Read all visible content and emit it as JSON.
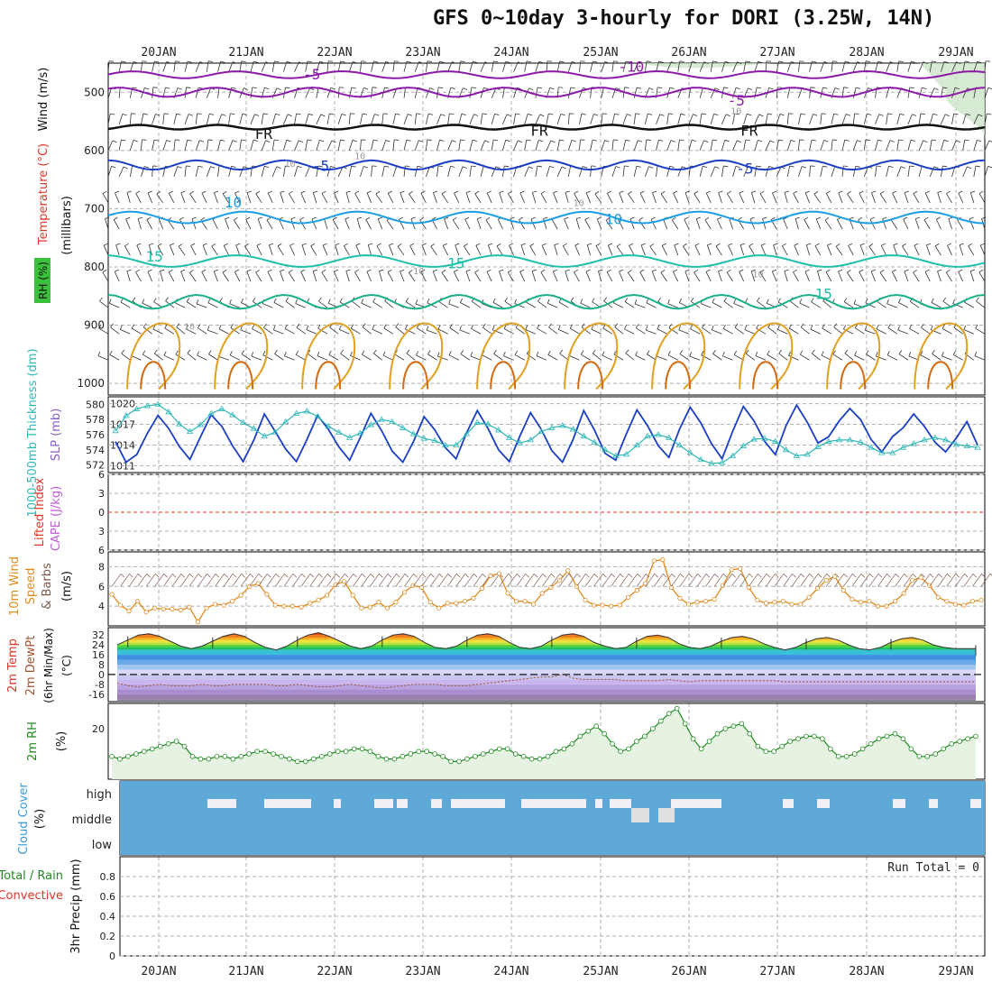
{
  "title": "GFS 0~10day 3-hourly for DORI (3.25W, 14N)",
  "colors": {
    "bg": "#ffffff",
    "grid": "#b0b0b0",
    "cloud": "#5ea9d8",
    "cloud_clear": "#f2eef6",
    "rh_fill": "#e6f2e2",
    "rh_line": "#1f8a1f",
    "temp_line": "#555555",
    "slp": "#1a3fc4",
    "thick": "#2fb7b7",
    "wind": "#e08a1e"
  },
  "chart_data": [
    {
      "panel": "upper-air",
      "type": "contour",
      "ylabel_parts": [
        "RH (%)",
        "Temperature (°C)",
        "Wind (m/s)"
      ],
      "yunit": "(millibars)",
      "x_ticks": [
        "20JAN",
        "21JAN",
        "22JAN",
        "23JAN",
        "24JAN",
        "25JAN",
        "26JAN",
        "27JAN",
        "28JAN",
        "29JAN"
      ],
      "y_ticks": [
        500,
        600,
        700,
        800,
        900,
        1000
      ],
      "ylim": [
        450,
        1020
      ],
      "contour_labels": [
        {
          "text": "-5",
          "pressure": 470,
          "day": 1.75,
          "color": "#8c1aa8"
        },
        {
          "text": "-10",
          "pressure": 457,
          "day": 5.4,
          "color": "#8c1aa8"
        },
        {
          "text": "-5",
          "pressure": 515,
          "day": 6.6,
          "color": "#8c1aa8"
        },
        {
          "text": "FR",
          "pressure": 572,
          "day": 1.2,
          "color": "#111111"
        },
        {
          "text": "FR",
          "pressure": 567,
          "day": 4.35,
          "color": "#111111"
        },
        {
          "text": "FR",
          "pressure": 567,
          "day": 6.75,
          "color": "#111111"
        },
        {
          "text": "-5",
          "pressure": 627,
          "day": 1.85,
          "color": "#1a3fc4"
        },
        {
          "text": "-5",
          "pressure": 632,
          "day": 6.7,
          "color": "#1a3fc4"
        },
        {
          "text": "10",
          "pressure": 690,
          "day": 0.85,
          "color": "#1c9ee6"
        },
        {
          "text": "10",
          "pressure": 719,
          "day": 5.2,
          "color": "#1c9ee6"
        },
        {
          "text": "15",
          "pressure": 783,
          "day": -0.05,
          "color": "#1fbfaa"
        },
        {
          "text": "15",
          "pressure": 795,
          "day": 3.4,
          "color": "#1fbfaa"
        },
        {
          "text": "15",
          "pressure": 847,
          "day": 7.6,
          "color": "#1fbfaa"
        },
        {
          "text": "10",
          "pressure": 530,
          "day": 6.6,
          "color": "#999999"
        },
        {
          "text": "10",
          "pressure": 607,
          "day": 2.3,
          "color": "#999999"
        },
        {
          "text": "10",
          "pressure": 620,
          "day": 1.5,
          "color": "#999999"
        },
        {
          "text": "10",
          "pressure": 688,
          "day": 4.8,
          "color": "#999999"
        },
        {
          "text": "10",
          "pressure": 810,
          "day": 6.85,
          "color": "#999999"
        },
        {
          "text": "10",
          "pressure": 805,
          "day": 2.97,
          "color": "#999999"
        },
        {
          "text": "10",
          "pressure": 900,
          "day": 0.35,
          "color": "#999999"
        }
      ]
    },
    {
      "panel": "slp-thickness",
      "type": "line",
      "ylabel_left": "1000-500mb Thickness (dm)",
      "ylabel_right": "SLP (mb)",
      "yticks_left": [
        572,
        574,
        576,
        578,
        580
      ],
      "yticks_right": [
        1011,
        1014,
        1017,
        1020
      ],
      "series": [
        {
          "name": "SLP",
          "values": [
            1014.5,
            1011.5,
            1012.6,
            1015.7,
            1018.3,
            1016.4,
            1013.8,
            1011.9,
            1015.2,
            1018.4,
            1016.7,
            1013.9,
            1011.6,
            1014.7,
            1018.5,
            1016.0,
            1013.4,
            1011.6,
            1014.8,
            1018.3,
            1016.3,
            1013.7,
            1011.8,
            1015.1,
            1018.6,
            1016.1,
            1013.1,
            1011.5,
            1014.5,
            1018.1,
            1016.2,
            1013.6,
            1012.0,
            1015.8,
            1019.0,
            1016.4,
            1013.3,
            1011.6,
            1015.3,
            1018.7,
            1016.3,
            1013.2,
            1011.5,
            1014.8,
            1019.0,
            1016.2,
            1012.8,
            1011.8,
            1015.6,
            1019.1,
            1016.8,
            1013.9,
            1012.2,
            1016.3,
            1019.5,
            1017.2,
            1014.2,
            1012.0,
            1016.0,
            1019.6,
            1017.5,
            1014.5,
            1012.6,
            1016.8,
            1019.8,
            1017.3,
            1014.3,
            1015.2,
            1017.5,
            1019.3,
            1017.7,
            1014.8,
            1013.0,
            1015.2,
            1016.5,
            1018.5,
            1016.7,
            1014.4,
            1013.0,
            1015.0,
            1017.4,
            1014.0
          ]
        },
        {
          "name": "Thickness",
          "values": [
            576.5,
            578.5,
            579.4,
            579.8,
            580.0,
            579.0,
            577.4,
            576.4,
            577.3,
            578.8,
            579.4,
            578.6,
            577.6,
            576.8,
            575.8,
            576.3,
            577.7,
            578.8,
            579.1,
            578.4,
            577.1,
            576.3,
            575.6,
            576.2,
            577.3,
            578.0,
            577.7,
            576.9,
            576.1,
            575.5,
            575.2,
            574.6,
            574.6,
            576.1,
            577.6,
            577.4,
            576.6,
            575.6,
            574.9,
            575.3,
            576.4,
            576.9,
            577.2,
            576.7,
            575.8,
            575.0,
            574.0,
            573.2,
            573.4,
            574.6,
            575.8,
            576.0,
            575.6,
            574.6,
            573.6,
            572.7,
            572.2,
            572.3,
            573.2,
            574.5,
            575.4,
            575.5,
            575.1,
            574.0,
            573.2,
            573.4,
            574.4,
            575.1,
            575.3,
            575.3,
            575.0,
            574.3,
            573.6,
            573.6,
            574.3,
            574.8,
            575.3,
            575.6,
            575.3,
            574.7,
            574.5,
            574.3
          ]
        }
      ]
    },
    {
      "panel": "lifted-index-cape",
      "type": "line",
      "ylabel_left": "Lifted Index",
      "ylabel_right": "CAPE (J/kg)",
      "yticks": [
        -6,
        -3,
        0,
        3,
        6
      ],
      "series": []
    },
    {
      "panel": "10m-wind",
      "type": "line",
      "ylabel": "10m Wind Speed & Barbs",
      "yunit": "(m/s)",
      "yticks": [
        4,
        6,
        8
      ],
      "series": [
        {
          "name": "Speed",
          "values": [
            5.2,
            4.1,
            3.5,
            4.5,
            3.4,
            3.8,
            3.7,
            3.7,
            3.6,
            3.9,
            2.4,
            3.8,
            4.2,
            4.1,
            4.5,
            5.1,
            6.0,
            6.3,
            5.2,
            4.1,
            4.0,
            4.0,
            3.9,
            4.3,
            4.6,
            5.1,
            6.2,
            6.5,
            5.1,
            3.8,
            3.9,
            4.4,
            3.8,
            4.4,
            5.4,
            6.1,
            5.9,
            4.4,
            3.8,
            4.3,
            4.3,
            4.5,
            4.8,
            5.8,
            7.1,
            7.3,
            5.3,
            4.5,
            4.5,
            4.2,
            5.3,
            5.9,
            6.6,
            7.6,
            6.0,
            4.6,
            4.1,
            4.1,
            4.0,
            4.1,
            4.9,
            5.6,
            6.3,
            8.6,
            8.7,
            5.9,
            4.8,
            4.2,
            4.4,
            4.5,
            4.7,
            6.1,
            7.7,
            7.8,
            5.9,
            4.6,
            4.3,
            4.4,
            4.5,
            4.2,
            4.2,
            4.9,
            5.8,
            6.6,
            7.0,
            5.6,
            4.7,
            4.4,
            4.5,
            4.0,
            4.0,
            4.5,
            5.3,
            6.6,
            6.9,
            6.1,
            4.9,
            4.5,
            4.2,
            4.1,
            4.5,
            4.6
          ]
        }
      ]
    },
    {
      "panel": "2m-temp",
      "type": "area",
      "ylabel": "2m Temp 2m DewPt (6hr Min/Max)",
      "yunit": "(°C)",
      "yticks": [
        -16,
        -8,
        0,
        8,
        16,
        24,
        32
      ],
      "series": [
        {
          "name": "2m Temp",
          "values": [
            24,
            28,
            32,
            33,
            31,
            27,
            23,
            21,
            23,
            27,
            31,
            33,
            31,
            26,
            22,
            20,
            23,
            28,
            32,
            34,
            31,
            27,
            23,
            21,
            23,
            28,
            32,
            33,
            31,
            26,
            22,
            21,
            23,
            28,
            32,
            33,
            31,
            26,
            22,
            21,
            23,
            28,
            32,
            33,
            31,
            26,
            23,
            21,
            22,
            27,
            31,
            32,
            30,
            25,
            22,
            21,
            23,
            27,
            30,
            31,
            29,
            25,
            22,
            20,
            22,
            26,
            29,
            30,
            28,
            24,
            21,
            20,
            22,
            26,
            29,
            30,
            28,
            24,
            22,
            21,
            21,
            21
          ]
        },
        {
          "name": "2m DewPt",
          "values": [
            -7,
            -9,
            -10,
            -9,
            -8,
            -9,
            -9,
            -9,
            -8,
            -9,
            -9,
            -8,
            -8,
            -8,
            -8,
            -9,
            -9,
            -8,
            -9,
            -10,
            -10,
            -9,
            -8,
            -9,
            -10,
            -11,
            -10,
            -9,
            -8,
            -8,
            -8,
            -9,
            -9,
            -9,
            -8,
            -7,
            -6,
            -5,
            -4,
            -3,
            -2,
            -2,
            0,
            -3,
            -4,
            -4,
            -4,
            -4,
            -5,
            -5,
            -5,
            -5,
            -4,
            -5,
            -6,
            -5,
            -5,
            -5,
            -5,
            -5,
            -5,
            -5,
            -5,
            -6,
            -6,
            -6,
            -6,
            -6,
            -6,
            -6,
            -6,
            -6,
            -6,
            -6,
            -6,
            -6,
            -6,
            -6,
            -6,
            -6,
            -6,
            -6
          ]
        }
      ]
    },
    {
      "panel": "2m-rh",
      "type": "area",
      "ylabel": "2m RH",
      "yunit": "(%)",
      "yticks": [
        20
      ],
      "series": [
        {
          "name": "2m RH",
          "values": [
            9,
            8,
            9,
            10,
            11,
            12,
            13,
            14,
            15,
            13,
            9,
            8,
            8,
            9,
            9,
            8,
            9,
            10,
            11,
            11,
            10,
            9,
            8,
            7,
            7,
            8,
            9,
            10,
            11,
            11,
            12,
            12,
            11,
            9,
            8,
            8,
            9,
            10,
            11,
            11,
            10,
            9,
            7,
            7,
            8,
            9,
            10,
            11,
            12,
            12,
            10,
            9,
            8,
            8,
            9,
            11,
            12,
            14,
            17,
            19,
            21,
            18,
            14,
            11,
            12,
            15,
            17,
            20,
            23,
            26,
            28,
            22,
            16,
            12,
            15,
            18,
            20,
            21,
            22,
            18,
            13,
            11,
            11,
            13,
            15,
            16,
            17,
            17,
            16,
            12,
            9,
            9,
            10,
            12,
            14,
            16,
            17,
            18,
            16,
            12,
            9,
            9,
            10,
            12,
            14,
            15,
            16,
            17
          ]
        }
      ]
    },
    {
      "panel": "cloud-cover",
      "type": "heatmap",
      "ylabel": "Cloud Cover (%)",
      "levels": [
        "high",
        "middle",
        "low"
      ]
    },
    {
      "panel": "precip",
      "type": "bar",
      "ylabel_parts": [
        "Total / Rain",
        "Convective"
      ],
      "ylabel_main": "3hr Precip (mm)",
      "yticks": [
        0,
        0.2,
        0.4,
        0.6,
        0.8
      ],
      "annotation": "Run Total = 0",
      "values": []
    }
  ]
}
